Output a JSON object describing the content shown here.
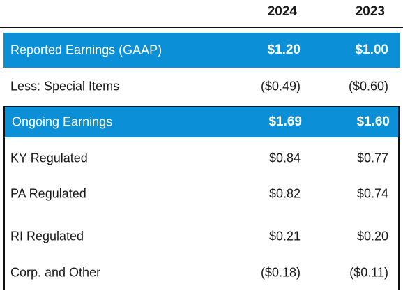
{
  "header": {
    "year1": "2024",
    "year2": "2023"
  },
  "rows": [
    {
      "label": "Reported Earnings (GAAP)",
      "v2024": "$1.20",
      "v2023": "$1.00",
      "highlight": true
    },
    {
      "label": "Less: Special Items",
      "v2024": "($0.49)",
      "v2023": "($0.60)",
      "highlight": false
    },
    {
      "label": "Ongoing Earnings",
      "v2024": "$1.69",
      "v2023": "$1.60",
      "highlight": true
    },
    {
      "label": "KY Regulated",
      "v2024": "$0.84",
      "v2023": "$0.77",
      "highlight": false
    },
    {
      "label": "PA Regulated",
      "v2024": "$0.82",
      "v2023": "$0.74",
      "highlight": false
    },
    {
      "label": "RI Regulated",
      "v2024": "$0.21",
      "v2023": "$0.20",
      "highlight": false
    },
    {
      "label": "Corp. and Other",
      "v2024": "($0.18)",
      "v2023": "($0.11)",
      "highlight": false
    }
  ],
  "colors": {
    "highlight_bg": "#0b8fd6",
    "highlight_text": "#ffffff",
    "border": "#111111"
  }
}
